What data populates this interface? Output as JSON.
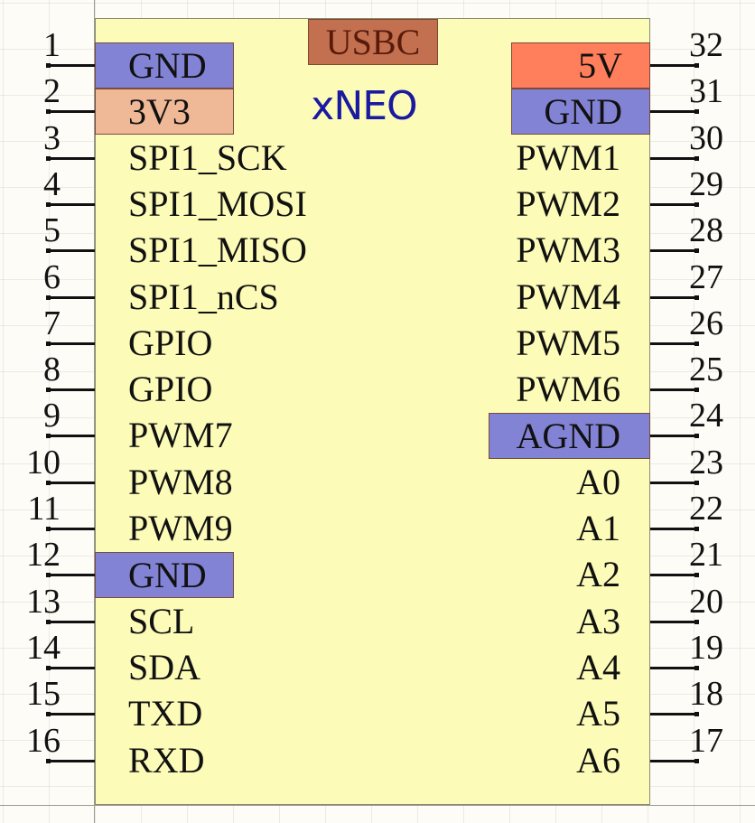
{
  "component": {
    "name": "xNEO",
    "connector_label": "USBC"
  },
  "colors": {
    "body_fill": "#fcfbb8",
    "gnd": "#8383d6",
    "power_5v": "#ff7e5b",
    "power_3v3": "#efb896",
    "usbc": "#c2704f",
    "usbc_text": "#5a1a0a",
    "title_text": "#1a1aa0"
  },
  "left_pins": [
    {
      "number": "1",
      "label": "GND",
      "fill": "gnd"
    },
    {
      "number": "2",
      "label": "3V3",
      "fill": "power_3v3"
    },
    {
      "number": "3",
      "label": "SPI1_SCK"
    },
    {
      "number": "4",
      "label": "SPI1_MOSI"
    },
    {
      "number": "5",
      "label": "SPI1_MISO"
    },
    {
      "number": "6",
      "label": "SPI1_nCS"
    },
    {
      "number": "7",
      "label": "GPIO"
    },
    {
      "number": "8",
      "label": "GPIO"
    },
    {
      "number": "9",
      "label": "PWM7"
    },
    {
      "number": "10",
      "label": "PWM8"
    },
    {
      "number": "11",
      "label": "PWM9"
    },
    {
      "number": "12",
      "label": "GND",
      "fill": "gnd"
    },
    {
      "number": "13",
      "label": "SCL"
    },
    {
      "number": "14",
      "label": "SDA"
    },
    {
      "number": "15",
      "label": "TXD"
    },
    {
      "number": "16",
      "label": "RXD"
    }
  ],
  "right_pins": [
    {
      "number": "32",
      "label": "5V",
      "fill": "power_5v"
    },
    {
      "number": "31",
      "label": "GND",
      "fill": "gnd"
    },
    {
      "number": "30",
      "label": "PWM1"
    },
    {
      "number": "29",
      "label": "PWM2"
    },
    {
      "number": "28",
      "label": "PWM3"
    },
    {
      "number": "27",
      "label": "PWM4"
    },
    {
      "number": "26",
      "label": "PWM5"
    },
    {
      "number": "25",
      "label": "PWM6"
    },
    {
      "number": "24",
      "label": "AGND",
      "fill": "gnd"
    },
    {
      "number": "23",
      "label": "A0"
    },
    {
      "number": "22",
      "label": "A1"
    },
    {
      "number": "21",
      "label": "A2"
    },
    {
      "number": "20",
      "label": "A3"
    },
    {
      "number": "19",
      "label": "A4"
    },
    {
      "number": "18",
      "label": "A5"
    },
    {
      "number": "17",
      "label": "A6"
    }
  ]
}
